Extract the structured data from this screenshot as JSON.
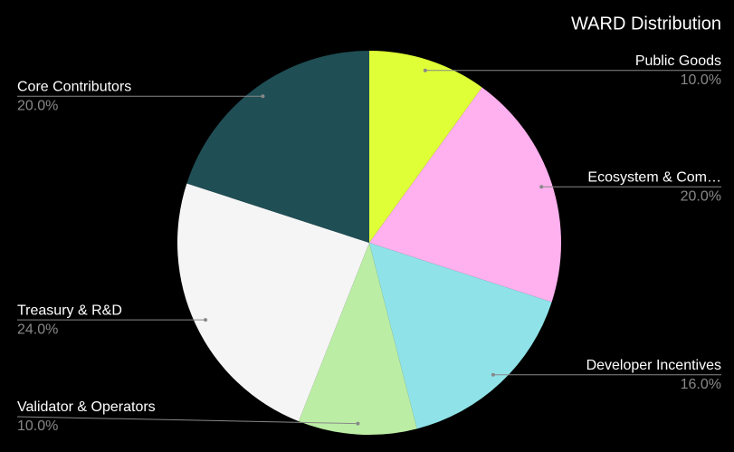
{
  "chart_data": {
    "type": "pie",
    "title": "WARD Distribution",
    "categories": [
      "Public Goods",
      "Ecosystem & Com…",
      "Developer Incentives",
      "Validator & Operators",
      "Treasury & R&D",
      "Core Contributors"
    ],
    "values": [
      10,
      20,
      16,
      10,
      24,
      20
    ],
    "value_labels": [
      "10.0%",
      "20.0%",
      "16.0%",
      "10.0%",
      "24.0%",
      "20.0%"
    ],
    "colors": [
      "#dfff36",
      "#ffb0ee",
      "#8fe3e8",
      "#bbeda5",
      "#f5f5f5",
      "#1f4e55"
    ]
  }
}
